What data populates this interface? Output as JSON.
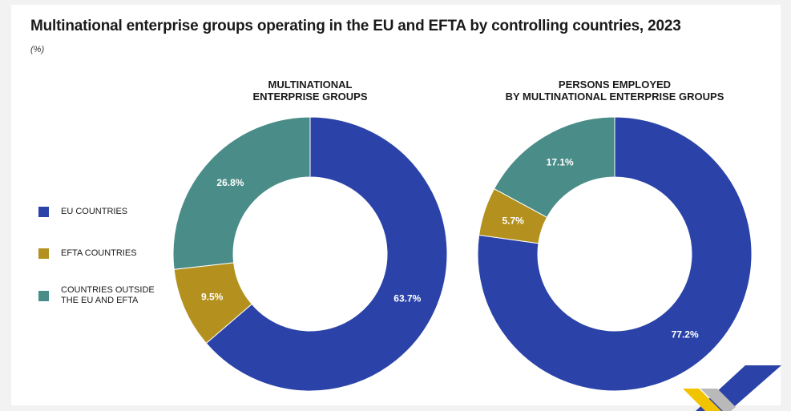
{
  "title": "Multinational enterprise groups operating in the EU and EFTA by controlling countries, 2023",
  "subtitle": "(%)",
  "legend": [
    {
      "label": "EU COUNTRIES",
      "color": "#2b43a8"
    },
    {
      "label": "EFTA COUNTRIES",
      "color": "#b4911f"
    },
    {
      "label": "COUNTRIES OUTSIDE THE EU AND EFTA",
      "color": "#4a8c88"
    }
  ],
  "chart_data": [
    {
      "type": "pie",
      "title": "MULTINATIONAL ENTERPRISE GROUPS",
      "title_lines": [
        "MULTINATIONAL",
        "ENTERPRISE GROUPS"
      ],
      "categories": [
        "EU COUNTRIES",
        "EFTA COUNTRIES",
        "COUNTRIES OUTSIDE THE EU AND EFTA"
      ],
      "values": [
        63.7,
        9.5,
        26.8
      ],
      "labels": [
        "63.7%",
        "9.5%",
        "26.8%"
      ],
      "colors": [
        "#2b43a8",
        "#b4911f",
        "#4a8c88"
      ],
      "donut": true
    },
    {
      "type": "pie",
      "title": "PERSONS EMPLOYED BY MULTINATIONAL ENTERPRISE GROUPS",
      "title_lines": [
        "PERSONS EMPLOYED",
        "BY MULTINATIONAL ENTERPRISE GROUPS"
      ],
      "categories": [
        "EU COUNTRIES",
        "EFTA COUNTRIES",
        "COUNTRIES OUTSIDE THE EU AND EFTA"
      ],
      "values": [
        77.2,
        5.7,
        17.1
      ],
      "labels": [
        "77.2%",
        "5.7%",
        "17.1%"
      ],
      "colors": [
        "#2b43a8",
        "#b4911f",
        "#4a8c88"
      ],
      "donut": true
    }
  ],
  "logo": {
    "colors": [
      "#2b43a8",
      "#f2c300",
      "#b9b9b9"
    ]
  }
}
